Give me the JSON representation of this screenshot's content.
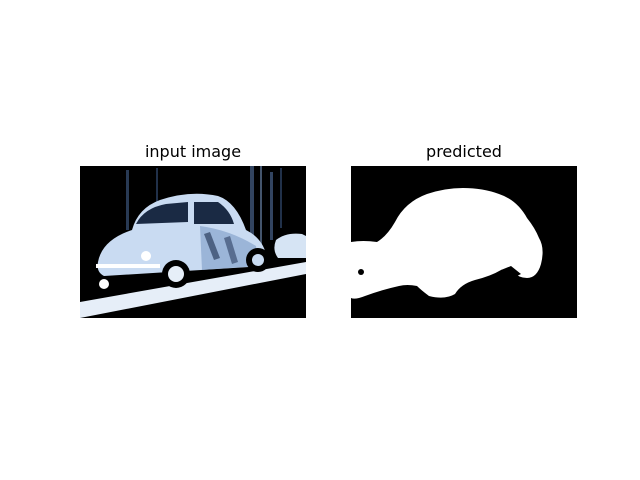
{
  "figure": {
    "panels": [
      {
        "title": "input image",
        "content": "photo-of-car"
      },
      {
        "title": "predicted",
        "content": "binary-segmentation-mask"
      }
    ]
  },
  "colors": {
    "background": "#ffffff",
    "image_dark": "#000000",
    "car_light": "#c9dbf2",
    "car_mid": "#7d9bc6",
    "mask_fg": "#ffffff",
    "mask_bg": "#000000"
  }
}
